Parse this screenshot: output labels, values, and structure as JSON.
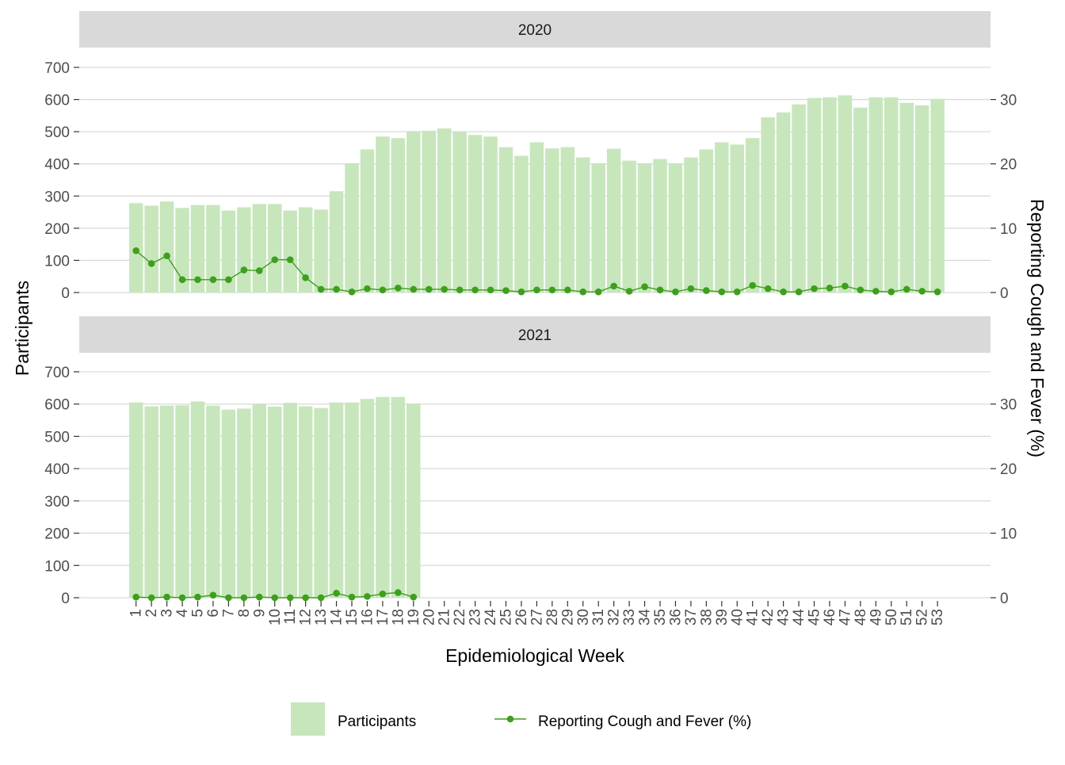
{
  "chart_data": {
    "type": "bar",
    "panels": [
      "2020",
      "2021"
    ],
    "xlabel": "Epidemiological Week",
    "ylabel_left": "Participants",
    "ylabel_right": "Reporting Cough and Fever (%)",
    "ylim_left": [
      0,
      700
    ],
    "left_ticks": [
      0,
      100,
      200,
      300,
      400,
      500,
      600,
      700
    ],
    "ylim_right": [
      0,
      35
    ],
    "right_ticks": [
      0,
      10,
      20,
      30
    ],
    "weeks": [
      "1",
      "2",
      "3",
      "4",
      "5",
      "6",
      "7",
      "8",
      "9",
      "10",
      "11",
      "12",
      "13",
      "14",
      "15",
      "16",
      "17",
      "18",
      "19",
      "20",
      "21",
      "22",
      "23",
      "24",
      "25",
      "26",
      "27",
      "28",
      "29",
      "30",
      "31",
      "32",
      "33",
      "34",
      "35",
      "36",
      "37",
      "38",
      "39",
      "40",
      "41",
      "42",
      "43",
      "44",
      "45",
      "46",
      "47",
      "48",
      "49",
      "50",
      "51",
      "52",
      "53"
    ],
    "grid": true,
    "legend_position": "bottom",
    "colors": {
      "bar": "#c7e6bc",
      "line": "#3e9f1c",
      "strip": "#d9d9d9",
      "grid": "#d9d9d9"
    },
    "legend": [
      {
        "label": "Participants",
        "kind": "bar"
      },
      {
        "label": "Reporting Cough and Fever (%)",
        "kind": "line"
      }
    ],
    "series": [
      {
        "panel": "2020",
        "name": "Participants",
        "values": [
          278,
          270,
          283,
          263,
          272,
          272,
          255,
          265,
          275,
          275,
          255,
          265,
          258,
          315,
          402,
          445,
          485,
          480,
          502,
          503,
          510,
          500,
          490,
          485,
          452,
          425,
          467,
          448,
          452,
          420,
          402,
          447,
          410,
          402,
          415,
          402,
          420,
          445,
          467,
          460,
          480,
          545,
          560,
          585,
          605,
          607,
          613,
          575,
          607,
          607,
          590,
          582,
          602
        ]
      },
      {
        "panel": "2020",
        "name": "Reporting Cough and Fever (%)",
        "values": [
          6.5,
          4.5,
          5.7,
          2.0,
          2.0,
          2.0,
          2.0,
          3.5,
          3.4,
          5.1,
          5.1,
          2.3,
          0.5,
          0.5,
          0.1,
          0.6,
          0.4,
          0.7,
          0.5,
          0.5,
          0.5,
          0.4,
          0.4,
          0.4,
          0.3,
          0.1,
          0.4,
          0.4,
          0.4,
          0.1,
          0.1,
          1.0,
          0.2,
          0.9,
          0.4,
          0.1,
          0.6,
          0.3,
          0.1,
          0.1,
          1.1,
          0.6,
          0.1,
          0.1,
          0.6,
          0.7,
          1.0,
          0.4,
          0.2,
          0.1,
          0.5,
          0.2,
          0.1
        ]
      },
      {
        "panel": "2021",
        "name": "Participants",
        "values": [
          605,
          593,
          595,
          596,
          608,
          595,
          583,
          586,
          601,
          592,
          604,
          593,
          588,
          605,
          605,
          616,
          622,
          622,
          602
        ]
      },
      {
        "panel": "2021",
        "name": "Reporting Cough and Fever (%)",
        "values": [
          0.1,
          0.0,
          0.1,
          0.0,
          0.1,
          0.4,
          0.0,
          0.0,
          0.1,
          0.0,
          0.0,
          0.0,
          0.0,
          0.7,
          0.1,
          0.2,
          0.6,
          0.8,
          0.1
        ]
      }
    ]
  }
}
